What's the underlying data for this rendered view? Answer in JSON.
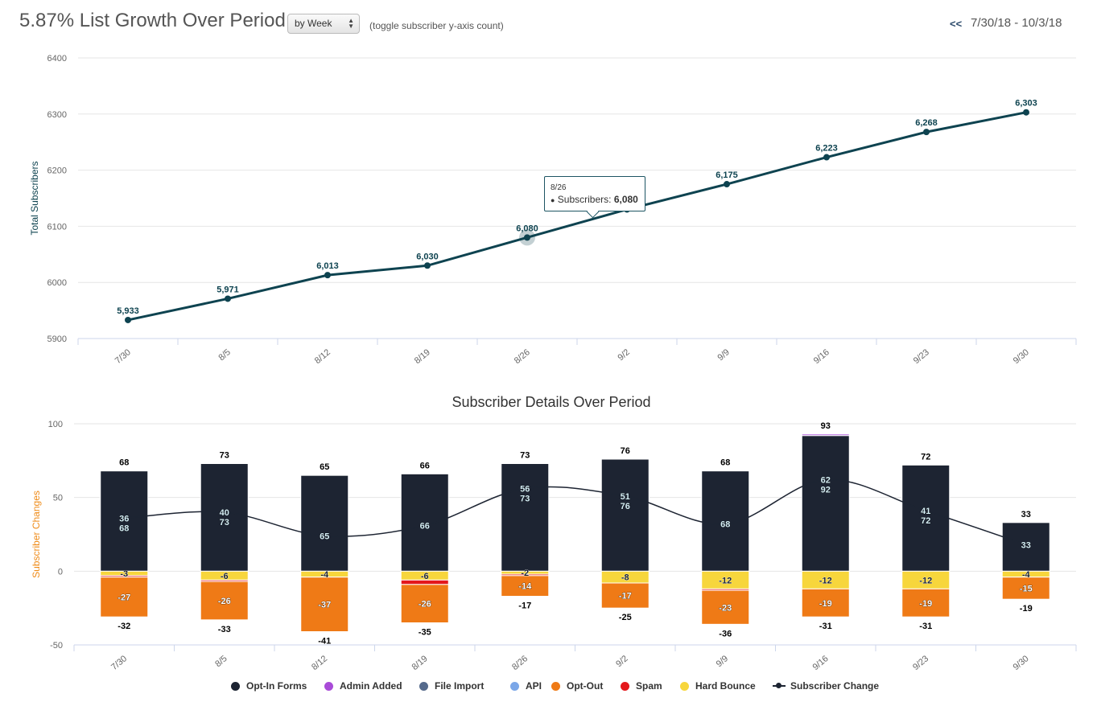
{
  "header": {
    "title": "5.87% List Growth Over Period",
    "period_select": "by Week",
    "toggle_link": "(toggle subscriber y-axis count)",
    "prev_button": "<<",
    "date_range": "7/30/18 - 10/3/18"
  },
  "colors": {
    "line": "#0e4350",
    "opt_in": "#1d2432",
    "admin_added": "#a94bd8",
    "file_import": "#556a8c",
    "api": "#7ba7e8",
    "opt_out": "#ef7a16",
    "spam": "#e4181c",
    "hard_bounce": "#f7d63c",
    "subscriber_change": "#1d2432"
  },
  "tooltip": {
    "date": "8/26",
    "label": "Subscribers: ",
    "value": "6,080"
  },
  "legend": [
    {
      "key": "opt_in",
      "label": "Opt-In Forms"
    },
    {
      "key": "admin_added",
      "label": "Admin Added"
    },
    {
      "key": "file_import",
      "label": "File Import"
    },
    {
      "key": "api",
      "label": "API"
    },
    {
      "key": "opt_out",
      "label": "Opt-Out"
    },
    {
      "key": "spam",
      "label": "Spam"
    },
    {
      "key": "hard_bounce",
      "label": "Hard Bounce"
    },
    {
      "key": "subscriber_change",
      "label": "Subscriber Change",
      "marker": "line"
    }
  ],
  "chart_data": [
    {
      "type": "line",
      "title": "",
      "ylabel": "Total Subscribers",
      "xlabel": "",
      "categories": [
        "7/30",
        "8/5",
        "8/12",
        "8/19",
        "8/26",
        "9/2",
        "9/9",
        "9/16",
        "9/23",
        "9/30"
      ],
      "yticks": [
        5900,
        6000,
        6100,
        6200,
        6300,
        6400
      ],
      "ylim": [
        5900,
        6400
      ],
      "series": [
        {
          "name": "Subscribers",
          "values": [
            5933,
            5971,
            6013,
            6030,
            6080,
            6130,
            6175,
            6223,
            6268,
            6303
          ]
        }
      ],
      "data_labels": [
        "5,933",
        "5,971",
        "6,013",
        "6,030",
        "6,080",
        "",
        "6,175",
        "6,223",
        "6,268",
        "6,303"
      ]
    },
    {
      "type": "bar",
      "title": "Subscriber Details Over Period",
      "ylabel": "Subscriber Changes",
      "xlabel": "",
      "categories": [
        "7/30",
        "8/5",
        "8/12",
        "8/19",
        "8/26",
        "9/2",
        "9/9",
        "9/16",
        "9/23",
        "9/30"
      ],
      "yticks": [
        -50,
        0,
        50,
        100
      ],
      "ylim": [
        -50,
        100
      ],
      "series": [
        {
          "name": "Opt-In Forms",
          "key": "opt_in",
          "values": [
            68,
            73,
            65,
            66,
            73,
            76,
            68,
            92,
            72,
            33
          ]
        },
        {
          "name": "Admin Added",
          "key": "admin_added",
          "values": [
            0,
            0,
            0,
            0,
            0,
            0,
            0,
            1,
            0,
            0
          ]
        },
        {
          "name": "Hard Bounce",
          "key": "hard_bounce",
          "values": [
            -3,
            -6,
            -4,
            -6,
            -2,
            -8,
            -12,
            -12,
            -12,
            -4
          ]
        },
        {
          "name": "Spam",
          "key": "spam",
          "values": [
            -1,
            -1,
            0,
            -3,
            -1,
            0,
            -1,
            0,
            0,
            0
          ]
        },
        {
          "name": "Opt-Out",
          "key": "opt_out",
          "values": [
            -27,
            -26,
            -37,
            -26,
            -14,
            -17,
            -23,
            -19,
            -19,
            -15
          ]
        }
      ],
      "positive_totals": [
        "68",
        "73",
        "65",
        "66",
        "73",
        "76",
        "68",
        "93",
        "72",
        "33"
      ],
      "negative_totals": [
        "-32",
        "-33",
        "-41",
        "-35",
        "-17",
        "-25",
        "-36",
        "-31",
        "-31",
        "-19"
      ],
      "optin_labels": [
        "68",
        "73",
        "65",
        "66",
        "73",
        "76",
        "68",
        "92",
        "72",
        "33"
      ],
      "change_labels": [
        "36",
        "40",
        "",
        "",
        "56",
        "51",
        "",
        "62",
        "41",
        ""
      ],
      "hard_bounce_labels": [
        "-3",
        "-6",
        "-4",
        "-6",
        "-2",
        "-8",
        "-12",
        "-12",
        "-12",
        "-4"
      ],
      "opt_out_labels": [
        "-27",
        "-26",
        "-37",
        "-26",
        "-14",
        "-17",
        "-23",
        "-19",
        "-19",
        "-15"
      ],
      "subscriber_change": [
        36,
        40,
        24,
        31,
        56,
        51,
        32,
        62,
        41,
        18
      ]
    }
  ]
}
